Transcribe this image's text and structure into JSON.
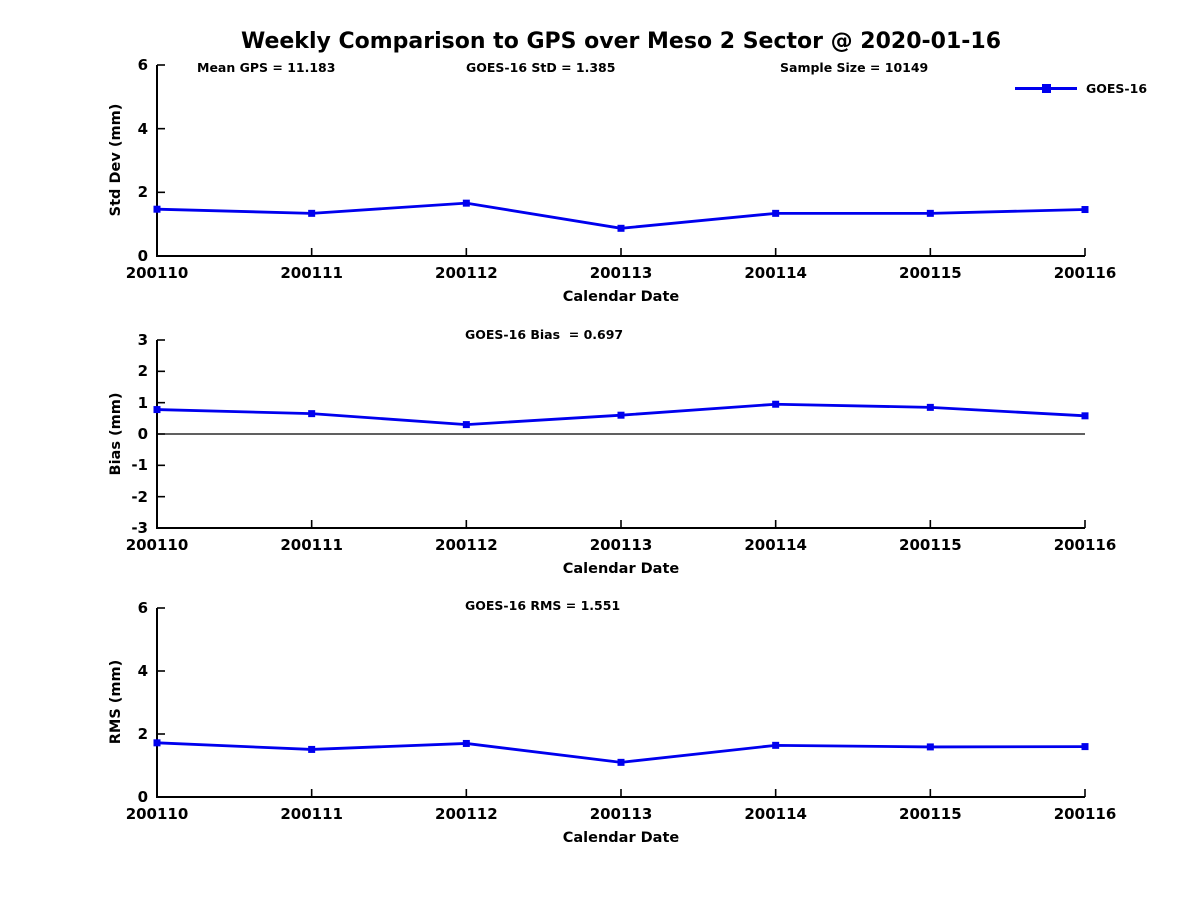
{
  "title": "Weekly Comparison to GPS over Meso 2 Sector @ 2020-01-16",
  "annotations": {
    "mean_gps": "Mean GPS = 11.183",
    "std": "GOES-16 StD = 1.385",
    "sample_size": "Sample Size = 10149",
    "bias": "GOES-16 Bias  = 0.697",
    "rms": "GOES-16 RMS = 1.551"
  },
  "legend": {
    "label": "GOES-16",
    "position": "top-right",
    "marker": "filled-square"
  },
  "colors": {
    "line": "#0000EE",
    "axis": "#000000",
    "background": "#ffffff"
  },
  "chart_data": [
    {
      "type": "line",
      "id": "std-dev",
      "xlabel": "Calendar Date",
      "ylabel": "Std Dev (mm)",
      "categories": [
        "200110",
        "200111",
        "200112",
        "200113",
        "200114",
        "200115",
        "200116"
      ],
      "series": [
        {
          "name": "GOES-16",
          "values": [
            1.47,
            1.34,
            1.66,
            0.87,
            1.34,
            1.34,
            1.46
          ]
        }
      ],
      "ylim": [
        0,
        6
      ],
      "yticks": [
        0,
        2,
        4,
        6
      ],
      "zero_line": false,
      "grid": false,
      "marker": "square"
    },
    {
      "type": "line",
      "id": "bias",
      "xlabel": "Calendar Date",
      "ylabel": "Bias (mm)",
      "categories": [
        "200110",
        "200111",
        "200112",
        "200113",
        "200114",
        "200115",
        "200116"
      ],
      "series": [
        {
          "name": "GOES-16",
          "values": [
            0.78,
            0.65,
            0.3,
            0.6,
            0.95,
            0.85,
            0.58
          ]
        }
      ],
      "ylim": [
        -3,
        3
      ],
      "yticks": [
        -3,
        -2,
        -1,
        0,
        1,
        2,
        3
      ],
      "zero_line": true,
      "grid": false,
      "marker": "square"
    },
    {
      "type": "line",
      "id": "rms",
      "xlabel": "Calendar Date",
      "ylabel": "RMS (mm)",
      "categories": [
        "200110",
        "200111",
        "200112",
        "200113",
        "200114",
        "200115",
        "200116"
      ],
      "series": [
        {
          "name": "GOES-16",
          "values": [
            1.72,
            1.51,
            1.7,
            1.1,
            1.64,
            1.59,
            1.6
          ]
        }
      ],
      "ylim": [
        0,
        6
      ],
      "yticks": [
        0,
        2,
        4,
        6
      ],
      "zero_line": false,
      "grid": false,
      "marker": "square"
    }
  ]
}
